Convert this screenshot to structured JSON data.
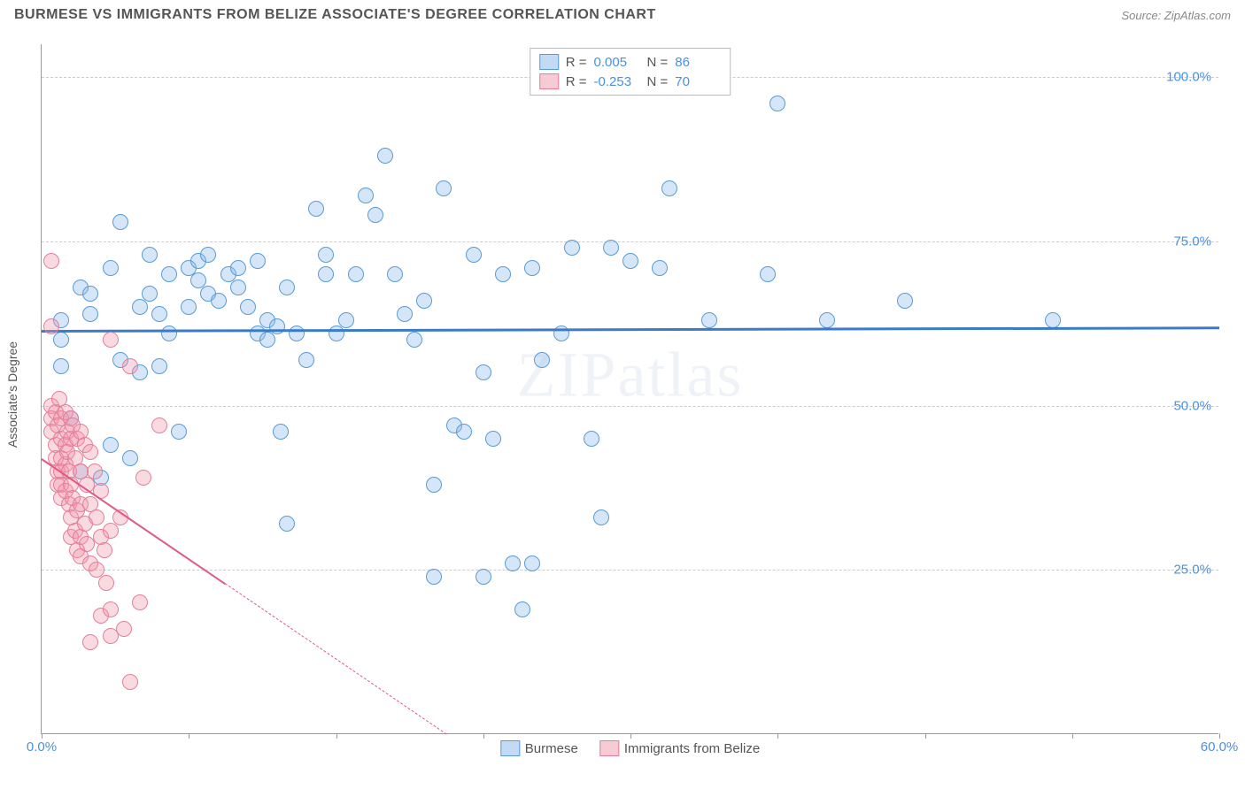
{
  "title": "BURMESE VS IMMIGRANTS FROM BELIZE ASSOCIATE'S DEGREE CORRELATION CHART",
  "source": "Source: ZipAtlas.com",
  "watermark": "ZIPatlas",
  "yaxis_title": "Associate's Degree",
  "chart": {
    "type": "scatter",
    "xlim": [
      0,
      60
    ],
    "ylim": [
      0,
      105
    ],
    "xticks": [
      0,
      7.5,
      15,
      22.5,
      30,
      37.5,
      45,
      52.5,
      60
    ],
    "xtick_labels": {
      "0": "0.0%",
      "60": "60.0%"
    },
    "yticks": [
      25,
      50,
      75,
      100
    ],
    "ytick_labels": {
      "25": "25.0%",
      "50": "50.0%",
      "75": "75.0%",
      "100": "100.0%"
    },
    "grid_color": "#cccccc",
    "background_color": "#ffffff",
    "series": [
      {
        "name": "Burmese",
        "color_fill": "rgba(135,182,234,0.35)",
        "color_stroke": "#5b9bd5",
        "R": "0.005",
        "N": "86",
        "trend": {
          "y_start": 61.5,
          "y_end": 62.0,
          "color": "#3a7bc8"
        },
        "points": [
          [
            1,
            56
          ],
          [
            1,
            60
          ],
          [
            1,
            63
          ],
          [
            1.5,
            48
          ],
          [
            2,
            68
          ],
          [
            2,
            40
          ],
          [
            2.5,
            64
          ],
          [
            2.5,
            67
          ],
          [
            3,
            39
          ],
          [
            3.5,
            44
          ],
          [
            3.5,
            71
          ],
          [
            4,
            57
          ],
          [
            4,
            78
          ],
          [
            4.5,
            42
          ],
          [
            5,
            65
          ],
          [
            5,
            55
          ],
          [
            5.5,
            67
          ],
          [
            5.5,
            73
          ],
          [
            6,
            56
          ],
          [
            6,
            64
          ],
          [
            6.5,
            70
          ],
          [
            6.5,
            61
          ],
          [
            7,
            46
          ],
          [
            7.5,
            65
          ],
          [
            7.5,
            71
          ],
          [
            8,
            69
          ],
          [
            8,
            72
          ],
          [
            8.5,
            67
          ],
          [
            8.5,
            73
          ],
          [
            9,
            66
          ],
          [
            9.5,
            70
          ],
          [
            10,
            71
          ],
          [
            10,
            68
          ],
          [
            10.5,
            65
          ],
          [
            11,
            61
          ],
          [
            11,
            72
          ],
          [
            11.5,
            60
          ],
          [
            11.5,
            63
          ],
          [
            12,
            62
          ],
          [
            12.2,
            46
          ],
          [
            12.5,
            68
          ],
          [
            12.5,
            32
          ],
          [
            13,
            61
          ],
          [
            13.5,
            57
          ],
          [
            14,
            80
          ],
          [
            14.5,
            70
          ],
          [
            14.5,
            73
          ],
          [
            15,
            61
          ],
          [
            15.5,
            63
          ],
          [
            16,
            70
          ],
          [
            16.5,
            82
          ],
          [
            17,
            79
          ],
          [
            17.5,
            88
          ],
          [
            18,
            70
          ],
          [
            18.5,
            64
          ],
          [
            19,
            60
          ],
          [
            19.5,
            66
          ],
          [
            20,
            38
          ],
          [
            20,
            24
          ],
          [
            20.5,
            83
          ],
          [
            21,
            47
          ],
          [
            21.5,
            46
          ],
          [
            22,
            73
          ],
          [
            22.5,
            55
          ],
          [
            22.5,
            24
          ],
          [
            23,
            45
          ],
          [
            23.5,
            70
          ],
          [
            24,
            26
          ],
          [
            24.5,
            19
          ],
          [
            25,
            71
          ],
          [
            25,
            26
          ],
          [
            25.5,
            57
          ],
          [
            26.5,
            61
          ],
          [
            27,
            74
          ],
          [
            28,
            45
          ],
          [
            28.5,
            33
          ],
          [
            29,
            74
          ],
          [
            30,
            72
          ],
          [
            31.5,
            71
          ],
          [
            32,
            83
          ],
          [
            34,
            63
          ],
          [
            37,
            70
          ],
          [
            37.5,
            96
          ],
          [
            40,
            63
          ],
          [
            44,
            66
          ],
          [
            51.5,
            63
          ]
        ]
      },
      {
        "name": "Immigrants from Belize",
        "color_fill": "rgba(240,150,170,0.35)",
        "color_stroke": "#e37f99",
        "R": "-0.253",
        "N": "70",
        "trend": {
          "y_start": 42,
          "y_end": -80,
          "color": "#e05a85"
        },
        "points": [
          [
            0.5,
            72
          ],
          [
            0.5,
            62
          ],
          [
            0.5,
            50
          ],
          [
            0.5,
            48
          ],
          [
            0.5,
            46
          ],
          [
            0.7,
            49
          ],
          [
            0.7,
            44
          ],
          [
            0.7,
            42
          ],
          [
            0.8,
            47
          ],
          [
            0.8,
            40
          ],
          [
            0.8,
            38
          ],
          [
            0.9,
            51
          ],
          [
            1,
            48
          ],
          [
            1,
            45
          ],
          [
            1,
            42
          ],
          [
            1,
            40
          ],
          [
            1,
            38
          ],
          [
            1,
            36
          ],
          [
            1.2,
            49
          ],
          [
            1.2,
            44
          ],
          [
            1.2,
            41
          ],
          [
            1.2,
            37
          ],
          [
            1.3,
            46
          ],
          [
            1.3,
            43
          ],
          [
            1.4,
            40
          ],
          [
            1.4,
            35
          ],
          [
            1.5,
            48
          ],
          [
            1.5,
            45
          ],
          [
            1.5,
            38
          ],
          [
            1.5,
            33
          ],
          [
            1.5,
            30
          ],
          [
            1.6,
            47
          ],
          [
            1.6,
            36
          ],
          [
            1.7,
            42
          ],
          [
            1.7,
            31
          ],
          [
            1.8,
            45
          ],
          [
            1.8,
            34
          ],
          [
            1.8,
            28
          ],
          [
            2,
            46
          ],
          [
            2,
            40
          ],
          [
            2,
            35
          ],
          [
            2,
            30
          ],
          [
            2,
            27
          ],
          [
            2.2,
            44
          ],
          [
            2.2,
            32
          ],
          [
            2.3,
            38
          ],
          [
            2.3,
            29
          ],
          [
            2.5,
            43
          ],
          [
            2.5,
            35
          ],
          [
            2.5,
            26
          ],
          [
            2.5,
            14
          ],
          [
            2.8,
            33
          ],
          [
            2.7,
            40
          ],
          [
            2.8,
            25
          ],
          [
            3,
            37
          ],
          [
            3,
            30
          ],
          [
            3,
            18
          ],
          [
            3.2,
            28
          ],
          [
            3.3,
            23
          ],
          [
            3.5,
            60
          ],
          [
            3.5,
            31
          ],
          [
            3.5,
            19
          ],
          [
            3.5,
            15
          ],
          [
            4,
            33
          ],
          [
            4.2,
            16
          ],
          [
            4.5,
            56
          ],
          [
            4.5,
            8
          ],
          [
            5,
            20
          ],
          [
            5.2,
            39
          ],
          [
            6,
            47
          ]
        ]
      }
    ]
  }
}
